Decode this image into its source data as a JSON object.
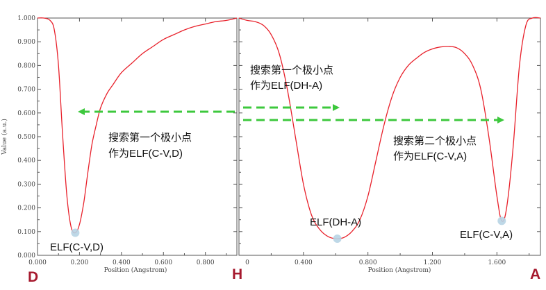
{
  "chart_data": [
    {
      "type": "line",
      "xlabel": "Position (Angstrom)",
      "ylabel": "Value (a.u.)",
      "xlim": [
        0,
        0.95
      ],
      "ylim": [
        0,
        1.0
      ],
      "xticks": [
        "0.000",
        "0.200",
        "0.400",
        "0.600",
        "0.800"
      ],
      "xtick_values": [
        0,
        0.2,
        0.4,
        0.6,
        0.8
      ],
      "yticks": [
        "0.000",
        "0.100",
        "0.200",
        "0.300",
        "0.400",
        "0.500",
        "0.600",
        "0.700",
        "0.800",
        "0.900",
        "1.000"
      ],
      "ytick_values": [
        0,
        0.1,
        0.2,
        0.3,
        0.4,
        0.5,
        0.6,
        0.7,
        0.8,
        0.9,
        1.0
      ],
      "line_color": "#e8202a",
      "series": [
        {
          "x": [
            0,
            0.03,
            0.06,
            0.08,
            0.1,
            0.12,
            0.14,
            0.16,
            0.18,
            0.2,
            0.22,
            0.24,
            0.26,
            0.28,
            0.3,
            0.33,
            0.36,
            0.4,
            0.45,
            0.5,
            0.55,
            0.6,
            0.65,
            0.7,
            0.75,
            0.8,
            0.85,
            0.9,
            0.95
          ],
          "y": [
            1.0,
            1.0,
            0.99,
            0.95,
            0.8,
            0.5,
            0.25,
            0.12,
            0.095,
            0.13,
            0.22,
            0.35,
            0.47,
            0.55,
            0.62,
            0.68,
            0.72,
            0.77,
            0.81,
            0.85,
            0.88,
            0.91,
            0.93,
            0.95,
            0.965,
            0.975,
            0.985,
            0.99,
            1.0
          ]
        }
      ],
      "minimum_marker": {
        "x": 0.18,
        "y": 0.095
      }
    },
    {
      "type": "line",
      "xlabel": "Position (Angstrom)",
      "ylabel": "",
      "xlim": [
        0,
        1.87
      ],
      "ylim": [
        0,
        1.0
      ],
      "xticks": [
        "0.400",
        "0.800",
        "1.200",
        "1.600"
      ],
      "xtick_values": [
        0.4,
        0.8,
        1.2,
        1.6
      ],
      "line_color": "#e8202a",
      "series": [
        {
          "x": [
            0,
            0.05,
            0.1,
            0.15,
            0.2,
            0.25,
            0.3,
            0.35,
            0.4,
            0.45,
            0.5,
            0.55,
            0.6,
            0.65,
            0.7,
            0.75,
            0.8,
            0.85,
            0.9,
            0.95,
            1.0,
            1.05,
            1.1,
            1.15,
            1.2,
            1.25,
            1.3,
            1.35,
            1.4,
            1.45,
            1.5,
            1.55,
            1.6,
            1.63,
            1.66,
            1.7,
            1.74,
            1.78,
            1.82,
            1.87
          ],
          "y": [
            1.0,
            0.99,
            0.985,
            0.97,
            0.93,
            0.85,
            0.7,
            0.5,
            0.3,
            0.17,
            0.11,
            0.08,
            0.07,
            0.075,
            0.1,
            0.15,
            0.25,
            0.4,
            0.55,
            0.67,
            0.75,
            0.8,
            0.83,
            0.855,
            0.87,
            0.878,
            0.88,
            0.875,
            0.85,
            0.8,
            0.7,
            0.5,
            0.25,
            0.145,
            0.2,
            0.45,
            0.8,
            0.97,
            1.0,
            1.0
          ]
        }
      ],
      "minima_markers": [
        {
          "x": 0.61,
          "y": 0.07
        },
        {
          "x": 1.63,
          "y": 0.145
        }
      ]
    }
  ],
  "labels": {
    "min_left": "ELF(C-V,D)",
    "min_mid": "ELF(DH-A)",
    "min_right": "ELF(C-V,A)",
    "anno_left_line1": "搜索第一个极小点",
    "anno_left_line2": "作为ELF(C-V,D)",
    "anno_mid_line1": "搜索第一个极小点",
    "anno_mid_line2": "作为ELF(DH-A)",
    "anno_right_line1": "搜索第二个极小点",
    "anno_right_line2": "作为ELF(C-V,A)",
    "letter_D": "D",
    "letter_H": "H",
    "letter_A": "A"
  },
  "colors": {
    "arrow": "#3dc83d",
    "marker": "#b7d4e4",
    "letters": "#a6192e",
    "frame": "#555555"
  }
}
